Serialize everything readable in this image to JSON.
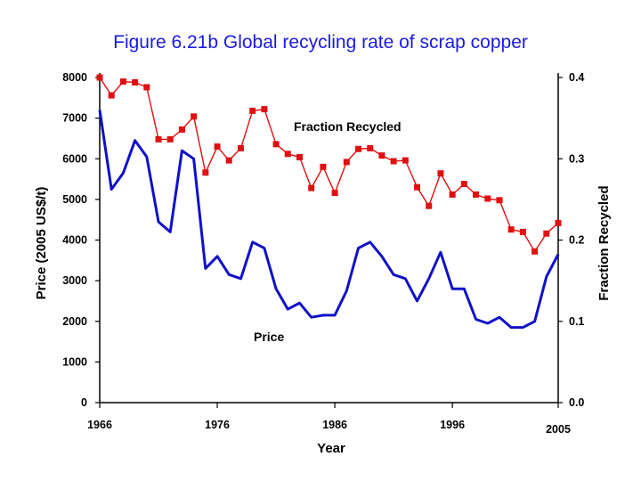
{
  "chart_data": {
    "type": "line",
    "title": "Figure 6.21b Global recycling rate of scrap copper",
    "xlabel": "Year",
    "ylabel_left": "Price (2005 US$/t)",
    "ylabel_right": "Fraction Recycled",
    "xlim": [
      1966,
      2005
    ],
    "ylim_left": [
      0,
      8000
    ],
    "ylim_right": [
      0.0,
      0.4
    ],
    "x_ticks": [
      "1966",
      "1976",
      "1986",
      "1996",
      "2005"
    ],
    "y_ticks_left": [
      "0",
      "1000",
      "2000",
      "3000",
      "4000",
      "5000",
      "6000",
      "7000",
      "8000"
    ],
    "y_ticks_right": [
      "0.0",
      "0.1",
      "0.2",
      "0.3",
      "0.4"
    ],
    "grid": false,
    "series": [
      {
        "name": "Price",
        "axis": "left",
        "color": "#1010c8",
        "x": [
          1966,
          1967,
          1968,
          1969,
          1970,
          1971,
          1972,
          1973,
          1974,
          1975,
          1976,
          1977,
          1978,
          1979,
          1980,
          1981,
          1982,
          1983,
          1984,
          1985,
          1986,
          1987,
          1988,
          1989,
          1990,
          1991,
          1992,
          1993,
          1994,
          1995,
          1996,
          1997,
          1998,
          1999,
          2000,
          2001,
          2002,
          2003,
          2004,
          2005
        ],
        "values": [
          7200,
          5250,
          5650,
          6450,
          6050,
          4450,
          4200,
          6200,
          6000,
          3300,
          3600,
          3150,
          3050,
          3950,
          3800,
          2800,
          2300,
          2450,
          2100,
          2150,
          2150,
          2750,
          3800,
          3950,
          3600,
          3150,
          3050,
          2500,
          3050,
          3700,
          2800,
          2800,
          2050,
          1950,
          2100,
          1850,
          1850,
          2000,
          3100,
          3650
        ]
      },
      {
        "name": "Fraction Recycled",
        "axis": "right",
        "color": "#e01010",
        "x": [
          1966,
          1967,
          1968,
          1969,
          1970,
          1971,
          1972,
          1973,
          1974,
          1975,
          1976,
          1977,
          1978,
          1979,
          1980,
          1981,
          1982,
          1983,
          1984,
          1985,
          1986,
          1987,
          1988,
          1989,
          1990,
          1991,
          1992,
          1993,
          1994,
          1995,
          1996,
          1997,
          1998,
          1999,
          2000,
          2001,
          2002,
          2003,
          2004,
          2005
        ],
        "values": [
          0.4,
          0.378,
          0.395,
          0.394,
          0.388,
          0.324,
          0.324,
          0.336,
          0.352,
          0.283,
          0.315,
          0.298,
          0.313,
          0.359,
          0.361,
          0.318,
          0.306,
          0.302,
          0.264,
          0.29,
          0.258,
          0.296,
          0.312,
          0.313,
          0.304,
          0.297,
          0.298,
          0.265,
          0.242,
          0.282,
          0.256,
          0.269,
          0.256,
          0.251,
          0.249,
          0.213,
          0.21,
          0.186,
          0.208,
          0.221
        ]
      }
    ]
  }
}
